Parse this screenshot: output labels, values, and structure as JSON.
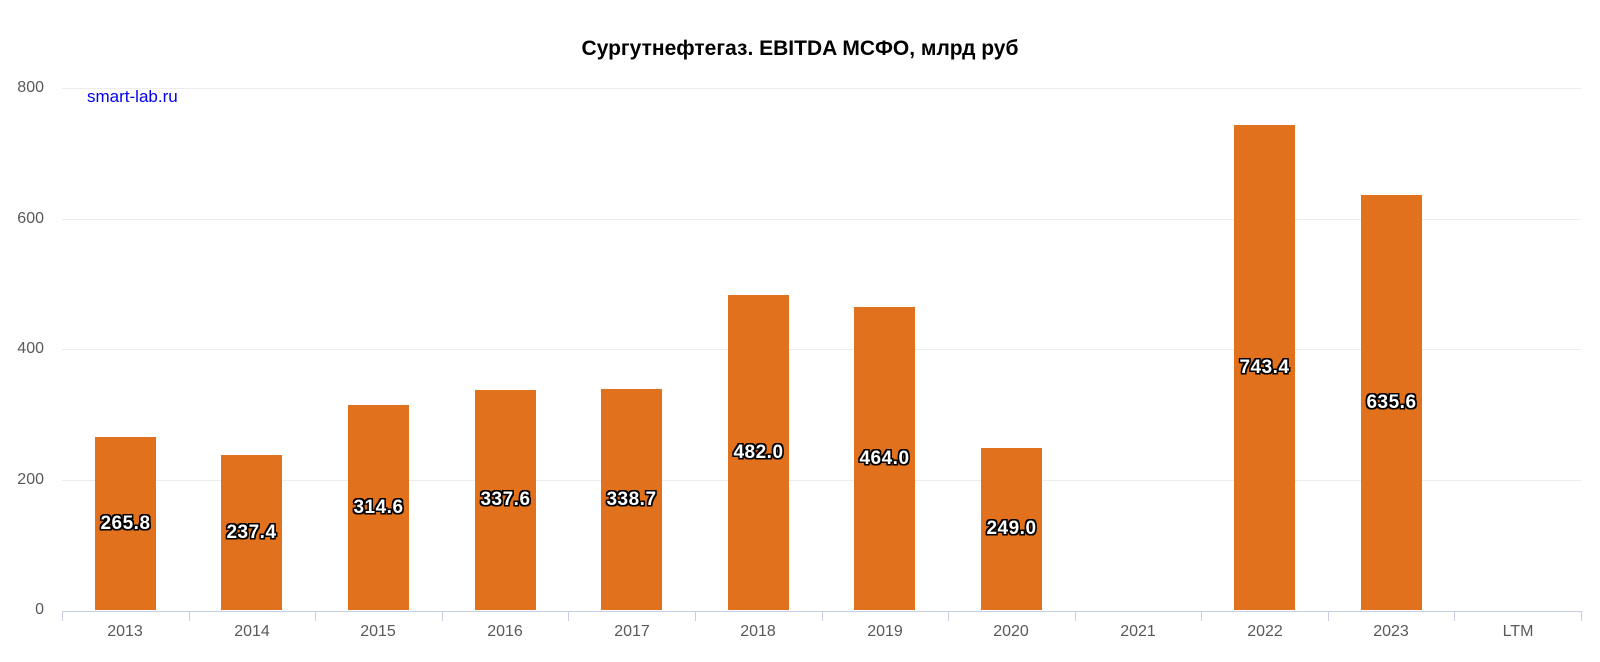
{
  "watermark": "smart-lab.ru",
  "colors": {
    "bar": "#e2711d",
    "grid": "#ececec",
    "axis": "#c7cee6",
    "tick_label": "#595959",
    "watermark": "#0000ee",
    "title": "#000000",
    "value_label_fill": "#ffffff",
    "value_label_outline": "#000000"
  },
  "chart_data": {
    "type": "bar",
    "title": "Сургутнефтегаз. EBITDA МСФО, млрд руб",
    "categories": [
      "2013",
      "2014",
      "2015",
      "2016",
      "2017",
      "2018",
      "2019",
      "2020",
      "2021",
      "2022",
      "2023",
      "LTM"
    ],
    "values": [
      265.8,
      237.4,
      314.6,
      337.6,
      338.7,
      482.0,
      464.0,
      249.0,
      null,
      743.4,
      635.6,
      null
    ],
    "labels": [
      "265.8",
      "237.4",
      "314.6",
      "337.6",
      "338.7",
      "482.0",
      "464.0",
      "249.0",
      "",
      "743.4",
      "635.6",
      ""
    ],
    "xlabel": "",
    "ylabel": "",
    "ylim": [
      0,
      800
    ],
    "yticks": [
      0,
      200,
      400,
      600,
      800
    ],
    "grid": "horizontal",
    "legend": "none",
    "value_labels_position": "centered-in-bar"
  }
}
